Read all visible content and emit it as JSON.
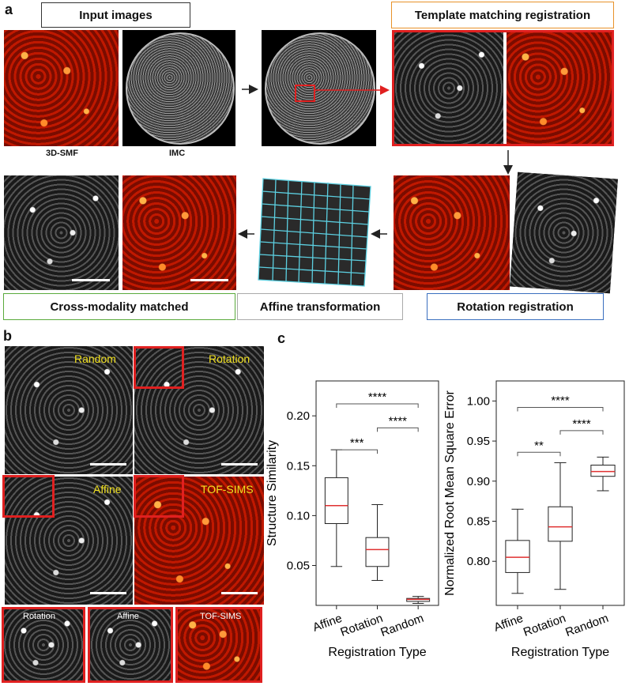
{
  "panel_a": {
    "letter": "a",
    "labels": {
      "input_images": "Input images",
      "template_matching": "Template matching registration",
      "cross_modality": "Cross-modality matched",
      "affine": "Affine transformation",
      "rotation": "Rotation registration",
      "smf": "3D-SMF",
      "imc": "IMC"
    },
    "colors": {
      "input_border": "#333333",
      "template_border": "#e8922a",
      "cross_border": "#5aaa3c",
      "affine_border": "#aaaaaa",
      "rotation_border": "#3a6fbf",
      "highlight": "#e02020",
      "grid": "#5ccfe0"
    }
  },
  "panel_b": {
    "letter": "b",
    "tiles": {
      "random": "Random",
      "rotation": "Rotation",
      "affine": "Affine",
      "tofsims": "TOF-SIMS"
    },
    "zooms": {
      "rotation": "Rotation",
      "affine": "Affine",
      "tofsims": "TOF-SIMS"
    }
  },
  "panel_c": {
    "letter": "c"
  },
  "chart_data": [
    {
      "type": "box",
      "ylabel": "Structure Similarity",
      "xlabel": "Registration Type",
      "categories": [
        "Affine",
        "Rotation",
        "Random"
      ],
      "ylim": [
        0.01,
        0.235
      ],
      "yticks": [
        0.05,
        0.1,
        0.15,
        0.2
      ],
      "ytick_labels": [
        "0.05",
        "0.10",
        "0.15",
        "0.20"
      ],
      "boxes": [
        {
          "min": 0.049,
          "q1": 0.092,
          "median": 0.11,
          "q3": 0.138,
          "max": 0.166
        },
        {
          "min": 0.035,
          "q1": 0.049,
          "median": 0.066,
          "q3": 0.078,
          "max": 0.111
        },
        {
          "min": 0.012,
          "q1": 0.014,
          "median": 0.016,
          "q3": 0.017,
          "max": 0.019
        }
      ],
      "significance": [
        {
          "from": 0,
          "to": 2,
          "label": "****",
          "y": 0.212
        },
        {
          "from": 1,
          "to": 2,
          "label": "****",
          "y": 0.188
        },
        {
          "from": 0,
          "to": 1,
          "label": "***",
          "y": 0.166
        }
      ],
      "median_color": "#e03030"
    },
    {
      "type": "box",
      "ylabel": "Normalized Root Mean Square Error",
      "xlabel": "Registration Type",
      "categories": [
        "Affine",
        "Rotation",
        "Random"
      ],
      "ylim": [
        0.745,
        1.025
      ],
      "yticks": [
        0.8,
        0.85,
        0.9,
        0.95,
        1.0
      ],
      "ytick_labels": [
        "0.80",
        "0.85",
        "0.90",
        "0.95",
        "1.00"
      ],
      "boxes": [
        {
          "min": 0.76,
          "q1": 0.786,
          "median": 0.805,
          "q3": 0.826,
          "max": 0.865
        },
        {
          "min": 0.765,
          "q1": 0.825,
          "median": 0.843,
          "q3": 0.868,
          "max": 0.923
        },
        {
          "min": 0.888,
          "q1": 0.906,
          "median": 0.912,
          "q3": 0.92,
          "max": 0.93
        }
      ],
      "significance": [
        {
          "from": 0,
          "to": 2,
          "label": "****",
          "y": 0.992
        },
        {
          "from": 1,
          "to": 2,
          "label": "****",
          "y": 0.963
        },
        {
          "from": 0,
          "to": 1,
          "label": "**",
          "y": 0.936
        }
      ],
      "median_color": "#e03030"
    }
  ]
}
